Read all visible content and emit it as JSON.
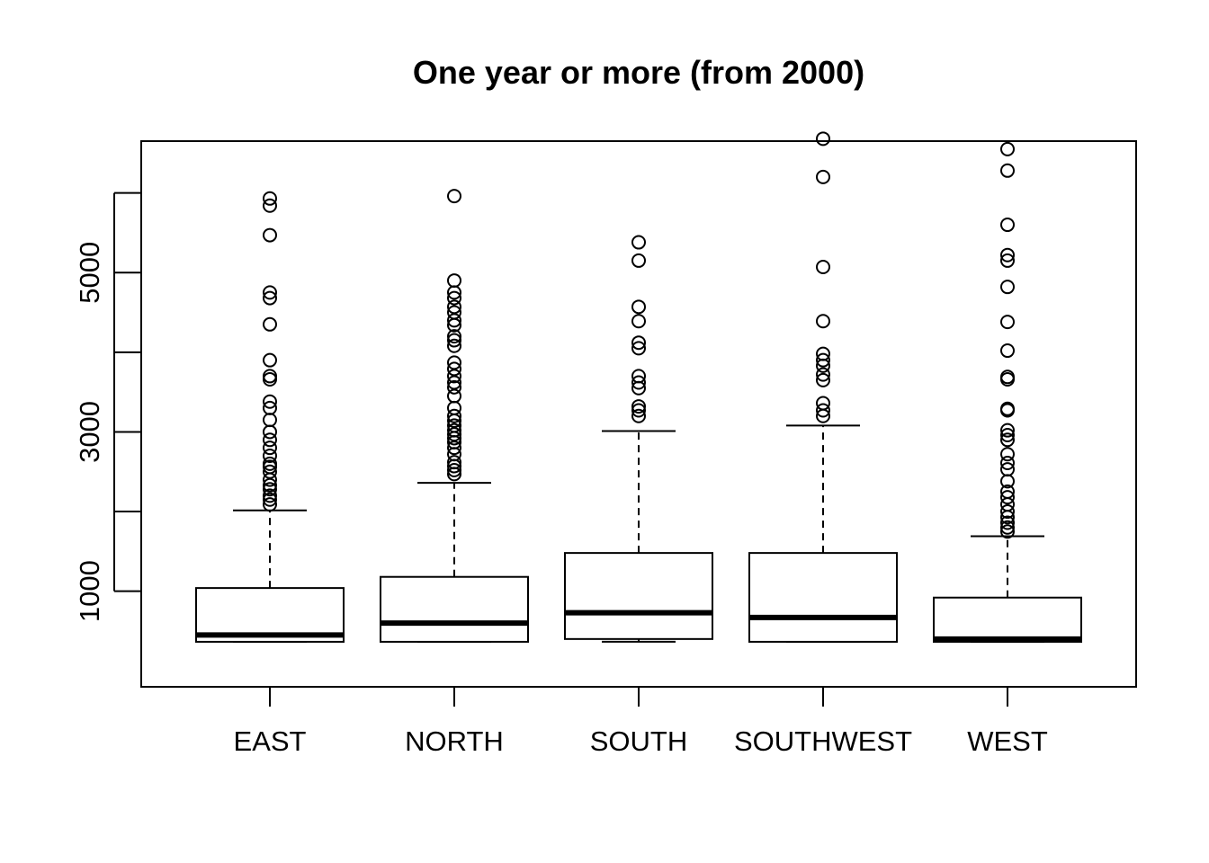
{
  "chart_data": {
    "type": "boxplot",
    "title": "One year or more (from 2000)",
    "xlabel": "",
    "ylabel": "",
    "ylim": [
      -200,
      6650
    ],
    "y_ticks": [
      1000,
      3000,
      5000
    ],
    "y_tick_labels": [
      "1000",
      "3000",
      "5000"
    ],
    "categories": [
      "EAST",
      "NORTH",
      "SOUTH",
      "SOUTHWEST",
      "WEST"
    ],
    "boxes": [
      {
        "category": "EAST",
        "min": 365,
        "q1": 365,
        "median": 450,
        "q3": 1040,
        "max": 2015,
        "outliers": [
          2090,
          2150,
          2200,
          2280,
          2330,
          2400,
          2500,
          2560,
          2600,
          2700,
          2800,
          2900,
          3000,
          3150,
          3300,
          3380,
          3660,
          3700,
          3900,
          4350,
          4680,
          4750,
          5470,
          5840,
          5930
        ]
      },
      {
        "category": "NORTH",
        "min": 365,
        "q1": 365,
        "median": 600,
        "q3": 1180,
        "max": 2360,
        "outliers": [
          2470,
          2520,
          2570,
          2620,
          2720,
          2800,
          2870,
          2920,
          2970,
          3020,
          3080,
          3140,
          3200,
          3300,
          3450,
          3560,
          3620,
          3700,
          3790,
          3870,
          4080,
          4150,
          4200,
          4340,
          4400,
          4500,
          4570,
          4680,
          4750,
          4900,
          5960
        ]
      },
      {
        "category": "SOUTH",
        "min": 365,
        "q1": 400,
        "median": 730,
        "q3": 1480,
        "max": 3010,
        "outliers": [
          3200,
          3270,
          3320,
          3550,
          3620,
          3700,
          4050,
          4120,
          4390,
          4570,
          5150,
          5380
        ]
      },
      {
        "category": "SOUTHWEST",
        "min": 365,
        "q1": 365,
        "median": 670,
        "q3": 1480,
        "max": 3080,
        "outliers": [
          3200,
          3270,
          3360,
          3650,
          3720,
          3830,
          3900,
          3980,
          4390,
          5070,
          6200,
          6680
        ]
      },
      {
        "category": "WEST",
        "min": 365,
        "q1": 365,
        "median": 400,
        "q3": 920,
        "max": 1690,
        "outliers": [
          1750,
          1800,
          1860,
          1930,
          2000,
          2090,
          2180,
          2250,
          2380,
          2530,
          2610,
          2720,
          2900,
          2960,
          3020,
          3270,
          3290,
          3660,
          3690,
          4020,
          4380,
          4820,
          5150,
          5220,
          5600,
          6280,
          6550
        ]
      }
    ],
    "grid": false,
    "legend": "none"
  }
}
